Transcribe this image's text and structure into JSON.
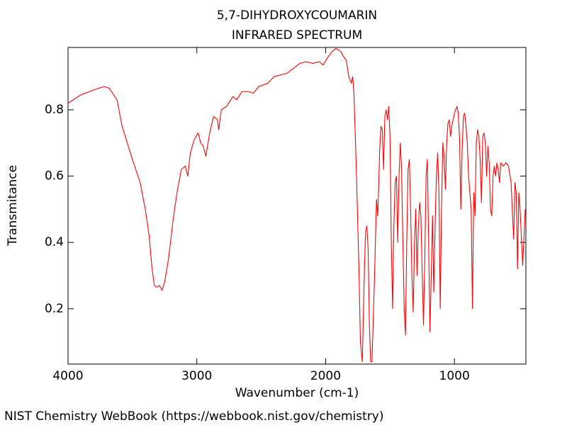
{
  "chart_data": {
    "type": "line",
    "title": "5,7-DIHYDROXYCOUMARIN",
    "subtitle": "INFRARED SPECTRUM",
    "x_label": "Wavenumber (cm-1)",
    "y_label": "Transmitance",
    "source": "NIST Chemistry WebBook (https://webbook.nist.gov/chemistry)",
    "color": "#ff0000",
    "xlim": [
      4000,
      445
    ],
    "ylim": [
      0.033,
      0.988
    ],
    "xticks": [
      4000,
      3000,
      2000,
      1000
    ],
    "yticks": [
      0.2,
      0.4,
      0.6,
      0.8
    ],
    "x": [
      4000,
      3900,
      3800,
      3720,
      3680,
      3620,
      3580,
      3500,
      3440,
      3400,
      3370,
      3350,
      3330,
      3310,
      3290,
      3270,
      3250,
      3220,
      3180,
      3150,
      3120,
      3090,
      3070,
      3050,
      3020,
      2990,
      2970,
      2950,
      2930,
      2900,
      2870,
      2840,
      2830,
      2810,
      2770,
      2720,
      2690,
      2650,
      2600,
      2560,
      2520,
      2450,
      2400,
      2300,
      2200,
      2150,
      2100,
      2050,
      2020,
      1980,
      1950,
      1920,
      1880,
      1860,
      1840,
      1820,
      1800,
      1790,
      1780,
      1760,
      1740,
      1730,
      1715,
      1700,
      1690,
      1680,
      1670,
      1660,
      1650,
      1640,
      1620,
      1605,
      1595,
      1580,
      1570,
      1560,
      1550,
      1540,
      1530,
      1520,
      1510,
      1500,
      1490,
      1480,
      1470,
      1460,
      1450,
      1440,
      1430,
      1420,
      1410,
      1400,
      1390,
      1380,
      1370,
      1360,
      1350,
      1340,
      1330,
      1320,
      1310,
      1300,
      1290,
      1280,
      1270,
      1260,
      1250,
      1240,
      1230,
      1220,
      1210,
      1200,
      1190,
      1180,
      1170,
      1160,
      1150,
      1140,
      1130,
      1120,
      1110,
      1100,
      1090,
      1080,
      1070,
      1060,
      1050,
      1040,
      1030,
      1020,
      1000,
      990,
      980,
      970,
      960,
      950,
      940,
      930,
      920,
      910,
      900,
      890,
      880,
      870,
      860,
      850,
      840,
      830,
      820,
      810,
      800,
      790,
      780,
      770,
      760,
      750,
      740,
      730,
      720,
      710,
      700,
      690,
      680,
      670,
      660,
      650,
      640,
      620,
      600,
      580,
      560,
      540,
      530,
      520,
      510,
      500,
      490,
      470,
      450
    ],
    "values": [
      0.82,
      0.845,
      0.86,
      0.87,
      0.865,
      0.83,
      0.75,
      0.65,
      0.58,
      0.5,
      0.42,
      0.33,
      0.27,
      0.265,
      0.27,
      0.255,
      0.28,
      0.35,
      0.48,
      0.56,
      0.62,
      0.63,
      0.6,
      0.67,
      0.71,
      0.73,
      0.7,
      0.69,
      0.66,
      0.73,
      0.78,
      0.77,
      0.74,
      0.8,
      0.81,
      0.84,
      0.83,
      0.855,
      0.855,
      0.85,
      0.87,
      0.88,
      0.9,
      0.91,
      0.94,
      0.945,
      0.94,
      0.945,
      0.935,
      0.96,
      0.975,
      0.985,
      0.975,
      0.96,
      0.95,
      0.9,
      0.88,
      0.9,
      0.85,
      0.6,
      0.3,
      0.1,
      0.04,
      0.3,
      0.43,
      0.45,
      0.38,
      0.15,
      0.04,
      0.04,
      0.3,
      0.53,
      0.48,
      0.68,
      0.75,
      0.74,
      0.62,
      0.78,
      0.8,
      0.77,
      0.81,
      0.72,
      0.4,
      0.2,
      0.45,
      0.58,
      0.6,
      0.4,
      0.6,
      0.7,
      0.62,
      0.4,
      0.2,
      0.12,
      0.4,
      0.62,
      0.65,
      0.5,
      0.3,
      0.19,
      0.4,
      0.5,
      0.3,
      0.45,
      0.52,
      0.48,
      0.3,
      0.15,
      0.35,
      0.6,
      0.65,
      0.4,
      0.13,
      0.3,
      0.48,
      0.25,
      0.45,
      0.6,
      0.67,
      0.55,
      0.2,
      0.5,
      0.7,
      0.66,
      0.56,
      0.7,
      0.76,
      0.77,
      0.72,
      0.75,
      0.79,
      0.8,
      0.81,
      0.79,
      0.71,
      0.5,
      0.68,
      0.78,
      0.79,
      0.75,
      0.7,
      0.6,
      0.55,
      0.5,
      0.2,
      0.55,
      0.48,
      0.7,
      0.74,
      0.72,
      0.65,
      0.52,
      0.72,
      0.73,
      0.7,
      0.6,
      0.69,
      0.64,
      0.5,
      0.48,
      0.6,
      0.63,
      0.6,
      0.64,
      0.62,
      0.58,
      0.64,
      0.63,
      0.64,
      0.63,
      0.58,
      0.41,
      0.58,
      0.55,
      0.32,
      0.55,
      0.5,
      0.33,
      0.5
    ]
  }
}
